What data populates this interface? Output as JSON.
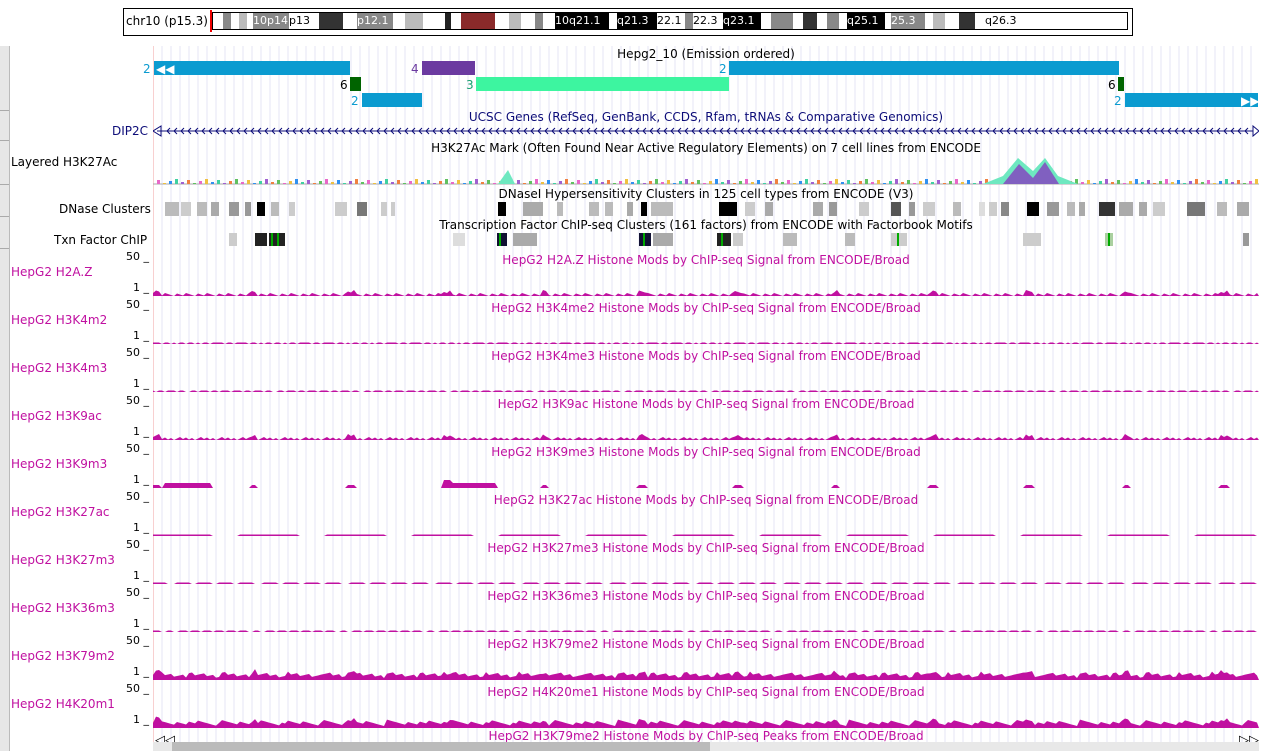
{
  "ideogram": {
    "chrom_label": "chr10 (p15.3)",
    "bands": [
      {
        "label": "",
        "shade": "#ffffff",
        "w": 10
      },
      {
        "label": "",
        "shade": "#888888",
        "w": 8
      },
      {
        "label": "",
        "shade": "#ffffff",
        "w": 8
      },
      {
        "label": "",
        "shade": "#bbbbbb",
        "w": 8
      },
      {
        "label": "",
        "shade": "#ffffff",
        "w": 6
      },
      {
        "label": "10p14",
        "shade": "#888888",
        "w": 36,
        "fg": "#fff"
      },
      {
        "label": "p13",
        "shade": "#ffffff",
        "w": 30
      },
      {
        "label": "",
        "shade": "#333333",
        "w": 24
      },
      {
        "label": "",
        "shade": "#ffffff",
        "w": 14
      },
      {
        "label": "p12.1",
        "shade": "#888888",
        "w": 36,
        "fg": "#fff"
      },
      {
        "label": "",
        "shade": "#ffffff",
        "w": 12
      },
      {
        "label": "",
        "shade": "#bbbbbb",
        "w": 18
      },
      {
        "label": "",
        "shade": "#ffffff",
        "w": 22
      },
      {
        "label": "",
        "shade": "#222222",
        "w": 6
      },
      {
        "label": "",
        "shade": "#ffffff",
        "w": 10
      },
      {
        "label": "",
        "shade": "#8a2a2a",
        "w": 34
      },
      {
        "label": "",
        "shade": "#ffffff",
        "w": 14
      },
      {
        "label": "",
        "shade": "#bbbbbb",
        "w": 12
      },
      {
        "label": "",
        "shade": "#ffffff",
        "w": 14
      },
      {
        "label": "",
        "shade": "#888888",
        "w": 8
      },
      {
        "label": "",
        "shade": "#ffffff",
        "w": 12
      },
      {
        "label": "10q21.1",
        "shade": "#000000",
        "w": 54,
        "fg": "#fff"
      },
      {
        "label": "",
        "shade": "#ffffff",
        "w": 8
      },
      {
        "label": "q21.3",
        "shade": "#000000",
        "w": 40,
        "fg": "#fff"
      },
      {
        "label": "22.1",
        "shade": "#ffffff",
        "w": 28
      },
      {
        "label": "",
        "shade": "#888888",
        "w": 8
      },
      {
        "label": "22.3",
        "shade": "#ffffff",
        "w": 30
      },
      {
        "label": "q23.1",
        "shade": "#000000",
        "w": 38,
        "fg": "#fff"
      },
      {
        "label": "",
        "shade": "#ffffff",
        "w": 10
      },
      {
        "label": "",
        "shade": "#888888",
        "w": 22
      },
      {
        "label": "",
        "shade": "#ffffff",
        "w": 10
      },
      {
        "label": "",
        "shade": "#333333",
        "w": 14
      },
      {
        "label": "",
        "shade": "#ffffff",
        "w": 10
      },
      {
        "label": "",
        "shade": "#888888",
        "w": 12
      },
      {
        "label": "",
        "shade": "#ffffff",
        "w": 8
      },
      {
        "label": "q25.1",
        "shade": "#000000",
        "w": 38,
        "fg": "#fff"
      },
      {
        "label": "",
        "shade": "#ffffff",
        "w": 6
      },
      {
        "label": "25.3",
        "shade": "#888888",
        "w": 34,
        "fg": "#fff"
      },
      {
        "label": "",
        "shade": "#ffffff",
        "w": 8
      },
      {
        "label": "",
        "shade": "#bbbbbb",
        "w": 12
      },
      {
        "label": "",
        "shade": "#ffffff",
        "w": 14
      },
      {
        "label": "",
        "shade": "#333333",
        "w": 16
      },
      {
        "label": "",
        "shade": "#ffffff",
        "w": 10
      },
      {
        "label": "q26.3",
        "shade": "#ffffff",
        "w": 34
      }
    ]
  },
  "tracks": {
    "hmm": {
      "title": "Hepg2_10 (Emission ordered)",
      "states": [
        "2",
        "4",
        "2",
        "6",
        "3",
        "6",
        "2",
        "2"
      ]
    },
    "genes": {
      "title": "UCSC Genes (RefSeq, GenBank, CCDS, Rfam, tRNAs & Comparative Genomics)",
      "gene_name": "DIP2C"
    },
    "h3k27ac": {
      "label": "Layered H3K27Ac",
      "title": "H3K27Ac Mark (Often Found Near Active Regulatory Elements) on 7 cell lines from ENCODE"
    },
    "dnase": {
      "label": "DNase Clusters",
      "title": "DNaseI Hypersensitivity Clusters in 125 cell types from ENCODE (V3)"
    },
    "txn": {
      "label": "Txn Factor ChIP",
      "title": "Transcription Factor ChIP-seq Clusters (161 factors) from ENCODE with Factorbook Motifs"
    },
    "signal_max": "50 _",
    "signal_min": "1 _",
    "signals": [
      {
        "label": "HepG2 H2A.Z",
        "title": "HepG2 H2A.Z Histone Mods by ChIP-seq Signal from ENCODE/Broad"
      },
      {
        "label": "HepG2 H3K4m2",
        "title": "HepG2 H3K4me2 Histone Mods by ChIP-seq Signal from ENCODE/Broad"
      },
      {
        "label": "HepG2 H3K4m3",
        "title": "HepG2 H3K4me3 Histone Mods by ChIP-seq Signal from ENCODE/Broad"
      },
      {
        "label": "HepG2 H3K9ac",
        "title": "HepG2 H3K9ac Histone Mods by ChIP-seq Signal from ENCODE/Broad"
      },
      {
        "label": "HepG2 H3K9m3",
        "title": "HepG2 H3K9me3 Histone Mods by ChIP-seq Signal from ENCODE/Broad"
      },
      {
        "label": "HepG2 H3K27ac",
        "title": "HepG2 H3K27ac Histone Mods by ChIP-seq Signal from ENCODE/Broad"
      },
      {
        "label": "HepG2 H3K27m3",
        "title": "HepG2 H3K27me3 Histone Mods by ChIP-seq Signal from ENCODE/Broad"
      },
      {
        "label": "HepG2 H3K36m3",
        "title": "HepG2 H3K36me3 Histone Mods by ChIP-seq Signal from ENCODE/Broad"
      },
      {
        "label": "HepG2 H3K79m2",
        "title": "HepG2 H3K79me2 Histone Mods by ChIP-seq Signal from ENCODE/Broad"
      },
      {
        "label": "HepG2 H4K20m1",
        "title": "HepG2 H4K20me1 Histone Mods by ChIP-seq Signal from ENCODE/Broad"
      }
    ],
    "peaks_title": "HepG2 H3K79me2 Histone Mods by ChIP-seq Peaks from ENCODE/Broad"
  },
  "colors": {
    "state2": "#0b9bd0",
    "state4": "#6b3aa0",
    "state6": "#006400",
    "state3": "#3df5a0",
    "gene": "#0c0c78",
    "signal": "#c010a0"
  }
}
